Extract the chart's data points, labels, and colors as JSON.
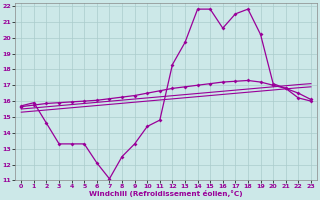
{
  "xlabel": "Windchill (Refroidissement éolien,°C)",
  "background_color": "#cce8e8",
  "line_color": "#990099",
  "grid_color": "#aacccc",
  "xlim": [
    -0.5,
    23.5
  ],
  "ylim": [
    11,
    22.2
  ],
  "xticks": [
    0,
    1,
    2,
    3,
    4,
    5,
    6,
    7,
    8,
    9,
    10,
    11,
    12,
    13,
    14,
    15,
    16,
    17,
    18,
    19,
    20,
    21,
    22,
    23
  ],
  "yticks": [
    11,
    12,
    13,
    14,
    15,
    16,
    17,
    18,
    19,
    20,
    21,
    22
  ],
  "line1_x": [
    0,
    1,
    2,
    3,
    4,
    5,
    6,
    7,
    8,
    9,
    10,
    11,
    12,
    13,
    14,
    15,
    16,
    17,
    18,
    19,
    20,
    21,
    22,
    23
  ],
  "line1_y": [
    15.7,
    15.9,
    14.6,
    13.3,
    13.3,
    13.3,
    12.1,
    11.1,
    12.5,
    13.3,
    14.4,
    14.8,
    18.3,
    19.7,
    21.8,
    21.8,
    20.6,
    21.5,
    21.8,
    20.2,
    17.1,
    16.8,
    16.2,
    16.0
  ],
  "line2_x": [
    0,
    1,
    2,
    3,
    4,
    5,
    6,
    7,
    8,
    9,
    10,
    11,
    12,
    13,
    14,
    15,
    16,
    17,
    18,
    19,
    20,
    21,
    22,
    23
  ],
  "line2_y": [
    15.5,
    15.57,
    15.64,
    15.71,
    15.78,
    15.85,
    15.92,
    15.99,
    16.06,
    16.13,
    16.2,
    16.27,
    16.34,
    16.41,
    16.48,
    16.55,
    16.62,
    16.69,
    16.76,
    16.83,
    16.9,
    16.97,
    17.04,
    17.1
  ],
  "line3_x": [
    0,
    1,
    2,
    3,
    4,
    5,
    6,
    7,
    8,
    9,
    10,
    11,
    12,
    13,
    14,
    15,
    16,
    17,
    18,
    19,
    20,
    21,
    22,
    23
  ],
  "line3_y": [
    15.3,
    15.37,
    15.44,
    15.51,
    15.58,
    15.65,
    15.72,
    15.79,
    15.86,
    15.93,
    16.0,
    16.07,
    16.14,
    16.21,
    16.28,
    16.35,
    16.42,
    16.49,
    16.56,
    16.63,
    16.7,
    16.77,
    16.84,
    16.9
  ],
  "line4_x": [
    0,
    1,
    2,
    3,
    4,
    5,
    6,
    7,
    8,
    9,
    10,
    11,
    12,
    13,
    14,
    15,
    16,
    17,
    18,
    19,
    20,
    21,
    22,
    23
  ],
  "line4_y": [
    15.65,
    15.75,
    15.85,
    15.9,
    15.95,
    16.0,
    16.05,
    16.15,
    16.25,
    16.35,
    16.5,
    16.65,
    16.8,
    16.9,
    17.0,
    17.1,
    17.2,
    17.25,
    17.3,
    17.2,
    17.0,
    16.8,
    16.5,
    16.1
  ]
}
